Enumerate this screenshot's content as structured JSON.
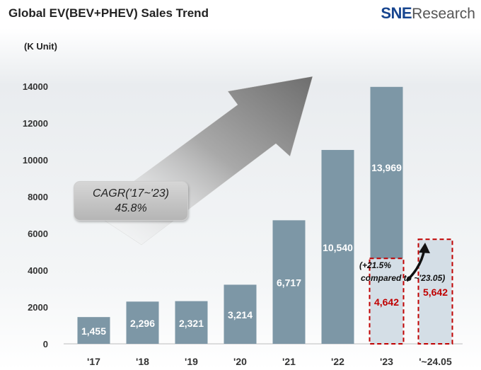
{
  "header": {
    "title": "Global EV(BEV+PHEV)  Sales Trend"
  },
  "logo": {
    "sne": "SNE",
    "research": "Research"
  },
  "colors": {
    "bar": "#7d97a6",
    "bar_light": "#d4dee6",
    "highlight": "#c00000",
    "axis_text": "#333333"
  },
  "annotations": {
    "cagr_line1": "CAGR('17~'23)",
    "cagr_line2": "45.8%",
    "growth_line1": "(+21.5%",
    "growth_line2": "compared to ~'23.05)"
  },
  "chart_data": {
    "type": "bar",
    "title": "Global EV(BEV+PHEV)  Sales Trend",
    "ylabel": "(K Unit)",
    "xlabel": "",
    "ylim": [
      0,
      14000
    ],
    "yticks": [
      0,
      2000,
      4000,
      6000,
      8000,
      10000,
      12000,
      14000
    ],
    "ytick_labels": [
      "0",
      "2000",
      "4000",
      "6000",
      "8000",
      "10000",
      "12000",
      "14000"
    ],
    "categories": [
      "'17",
      "'18",
      "'19",
      "'20",
      "'21",
      "'22",
      "'23",
      "'~24.05"
    ],
    "values": [
      1455,
      2296,
      2321,
      3214,
      6717,
      10540,
      13969,
      5642
    ],
    "value_labels": [
      "1,455",
      "2,296",
      "2,321",
      "3,214",
      "6,717",
      "10,540",
      "13,969",
      "5,642"
    ],
    "ytd_2023": {
      "category": "'23",
      "value": 4642,
      "label": "4,642"
    },
    "highlighted": [
      "'23 (~'23.05 portion)",
      "'~24.05"
    ],
    "legend": "none",
    "grid": false
  }
}
